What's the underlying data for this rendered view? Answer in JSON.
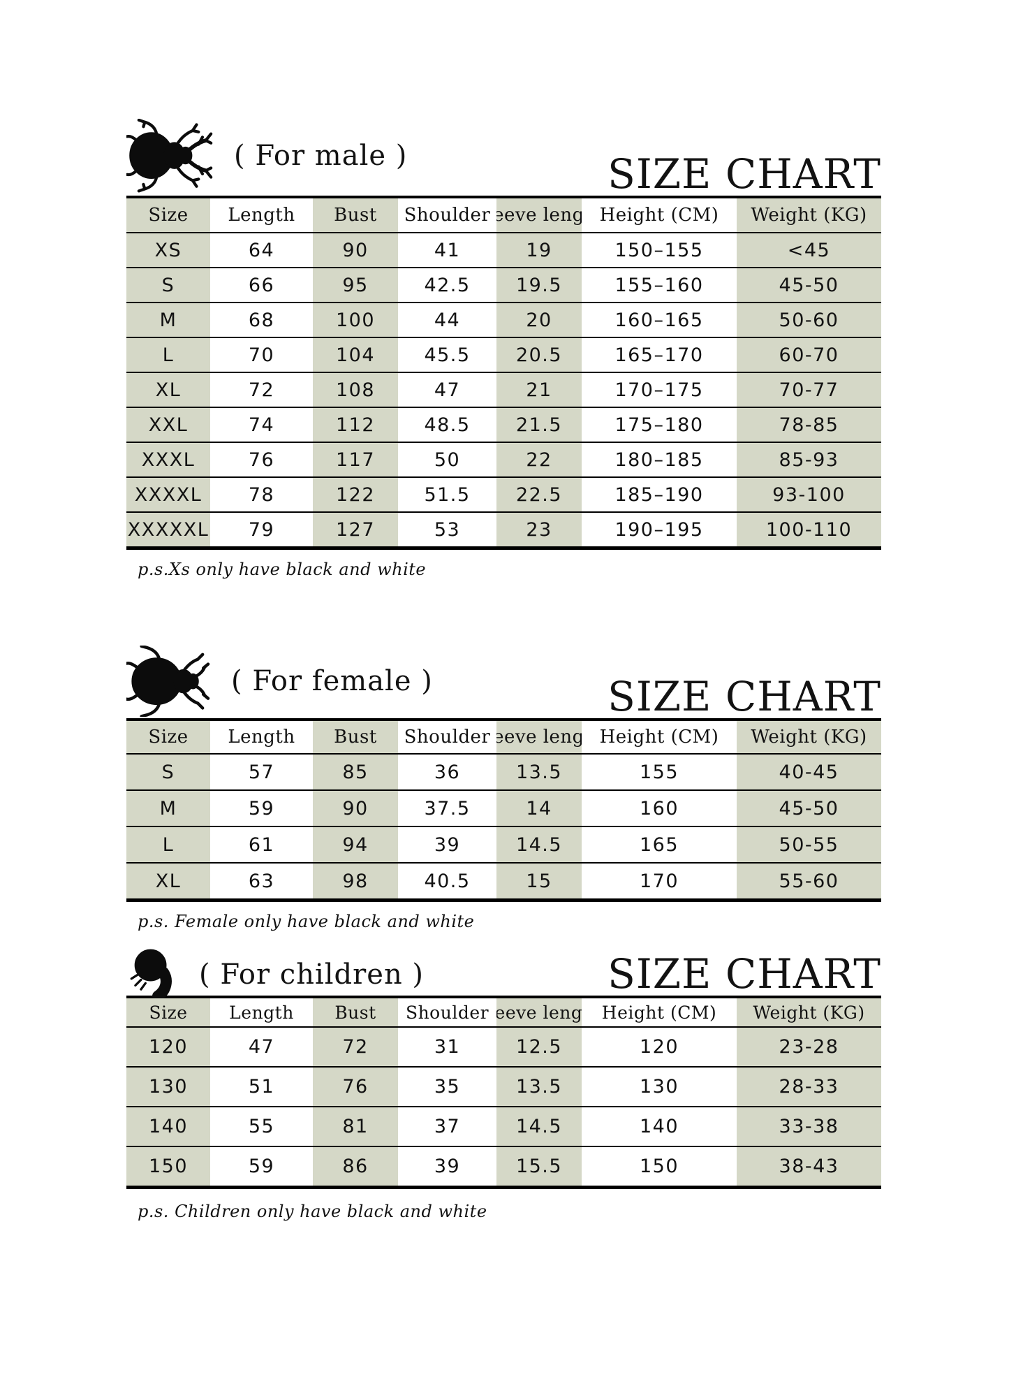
{
  "colors": {
    "cell_green": "#d5d8c7",
    "border": "#000000",
    "text": "#121212",
    "background": "#ffffff"
  },
  "sections": [
    {
      "id": "male",
      "icon": "male-beetle-icon",
      "label": "( For male )",
      "title": "SIZE CHART",
      "columns": [
        "Size",
        "Length",
        "Bust",
        "Shoulder",
        "Sleeve length",
        "Height (CM)",
        "Weight (KG)"
      ],
      "rows": [
        [
          "XS",
          "64",
          "90",
          "41",
          "19",
          "150–155",
          "<45"
        ],
        [
          "S",
          "66",
          "95",
          "42.5",
          "19.5",
          "155–160",
          "45-50"
        ],
        [
          "M",
          "68",
          "100",
          "44",
          "20",
          "160–165",
          "50-60"
        ],
        [
          "L",
          "70",
          "104",
          "45.5",
          "20.5",
          "165–170",
          "60-70"
        ],
        [
          "XL",
          "72",
          "108",
          "47",
          "21",
          "170–175",
          "70-77"
        ],
        [
          "XXL",
          "74",
          "112",
          "48.5",
          "21.5",
          "175–180",
          "78-85"
        ],
        [
          "XXXL",
          "76",
          "117",
          "50",
          "22",
          "180–185",
          "85-93"
        ],
        [
          "XXXXL",
          "78",
          "122",
          "51.5",
          "22.5",
          "185–190",
          "93-100"
        ],
        [
          "XXXXXL",
          "79",
          "127",
          "53",
          "23",
          "190–195",
          "100-110"
        ]
      ],
      "footnote": "p.s.Xs only have black and white"
    },
    {
      "id": "female",
      "icon": "female-beetle-icon",
      "label": "( For female )",
      "title": "SIZE CHART",
      "columns": [
        "Size",
        "Length",
        "Bust",
        "Shoulder",
        "Sleeve length",
        "Height (CM)",
        "Weight (KG)"
      ],
      "rows": [
        [
          "S",
          "57",
          "85",
          "36",
          "13.5",
          "155",
          "40-45"
        ],
        [
          "M",
          "59",
          "90",
          "37.5",
          "14",
          "160",
          "45-50"
        ],
        [
          "L",
          "61",
          "94",
          "39",
          "14.5",
          "165",
          "50-55"
        ],
        [
          "XL",
          "63",
          "98",
          "40.5",
          "15",
          "170",
          "55-60"
        ]
      ],
      "footnote": "p.s. Female only have black and white"
    },
    {
      "id": "children",
      "icon": "larva-icon",
      "label": "( For children )",
      "title": "SIZE CHART",
      "columns": [
        "Size",
        "Length",
        "Bust",
        "Shoulder",
        "Sleeve length",
        "Height (CM)",
        "Weight (KG)"
      ],
      "rows": [
        [
          "120",
          "47",
          "72",
          "31",
          "12.5",
          "120",
          "23-28"
        ],
        [
          "130",
          "51",
          "76",
          "35",
          "13.5",
          "130",
          "28-33"
        ],
        [
          "140",
          "55",
          "81",
          "37",
          "14.5",
          "140",
          "33-38"
        ],
        [
          "150",
          "59",
          "86",
          "39",
          "15.5",
          "150",
          "38-43"
        ]
      ],
      "footnote": "p.s. Children only have black and white"
    }
  ]
}
